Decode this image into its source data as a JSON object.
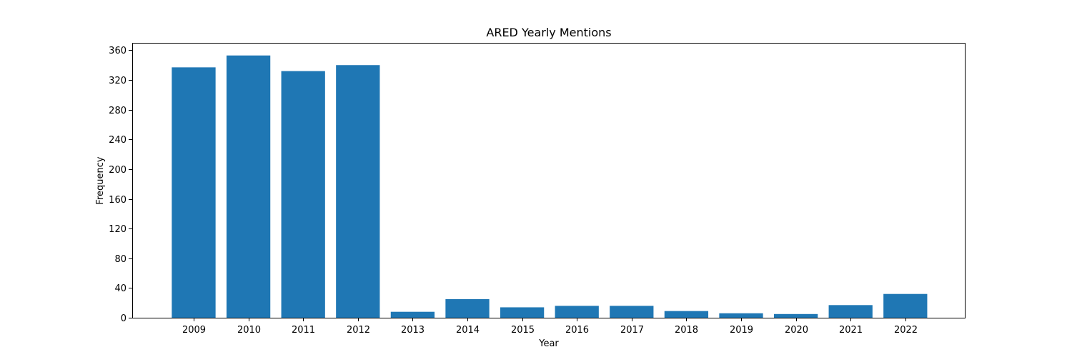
{
  "chart_data": {
    "type": "bar",
    "title": "ARED Yearly Mentions",
    "xlabel": "Year",
    "ylabel": "Frequency",
    "categories": [
      "2009",
      "2010",
      "2011",
      "2012",
      "2013",
      "2014",
      "2015",
      "2016",
      "2017",
      "2018",
      "2019",
      "2020",
      "2021",
      "2022"
    ],
    "values": [
      337,
      353,
      332,
      340,
      8,
      25,
      14,
      16,
      16,
      9,
      6,
      5,
      17,
      32
    ],
    "ylim": [
      0,
      370
    ],
    "yticks": [
      0,
      40,
      80,
      120,
      160,
      200,
      240,
      280,
      320,
      360
    ],
    "bar_color": "#1f77b4",
    "grid": false,
    "legend": "none"
  }
}
